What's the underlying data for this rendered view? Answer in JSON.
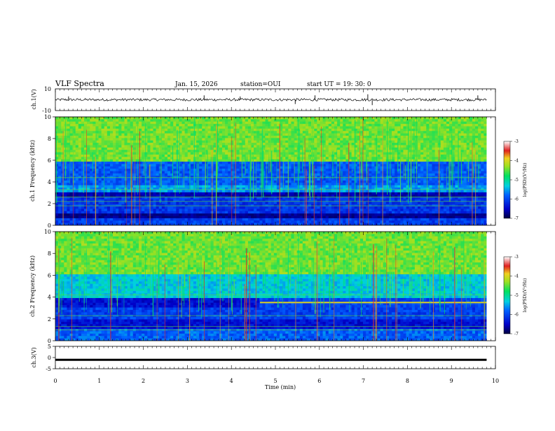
{
  "header": {
    "title": "VLF Spectra",
    "date": "Jan. 15, 2026",
    "station": "station=OUI",
    "start": "start  UT =   19: 30: 0"
  },
  "chart_data": [
    {
      "type": "line",
      "name": "ch1-waveform",
      "ylabel": "ch.1(V)",
      "ylim": [
        -10,
        10
      ],
      "yticks": [
        10,
        -10
      ],
      "baseline": 0,
      "noise_amplitude": 1.2,
      "spikes": [
        {
          "t": 0.3,
          "v": 3
        },
        {
          "t": 3.38,
          "v": 4
        },
        {
          "t": 4.2,
          "v": 3
        },
        {
          "t": 5.45,
          "v": -4
        },
        {
          "t": 5.9,
          "v": 4
        },
        {
          "t": 7.1,
          "v": 5
        },
        {
          "t": 7.2,
          "v": -5
        },
        {
          "t": 9.6,
          "v": 4
        }
      ]
    },
    {
      "type": "heatmap",
      "name": "ch1-spectrogram",
      "ylabel": "ch.1  Frequency (kHz)",
      "ylim": [
        0,
        10
      ],
      "yticks": [
        0,
        2,
        4,
        6,
        8,
        10
      ],
      "xlim": [
        0,
        10
      ],
      "data_end": 9.8,
      "colorbar": {
        "label": "log(PSD)(V²/Hz)",
        "range": [
          -7,
          -3
        ],
        "ticks": [
          -3,
          -4,
          -5,
          -6,
          -7
        ]
      },
      "band_boundaries_khz": [
        5.8,
        3.8,
        3.0,
        2.5,
        1.0,
        0.7
      ],
      "lines_khz": [
        1.8,
        2.2,
        2.6,
        3.3,
        4.4
      ]
    },
    {
      "type": "heatmap",
      "name": "ch2-spectrogram",
      "ylabel": "ch.2  Frequency (kHz)",
      "ylim": [
        0,
        10
      ],
      "yticks": [
        0,
        2,
        4,
        6,
        8,
        10
      ],
      "xlim": [
        0,
        10
      ],
      "data_end": 9.8,
      "colorbar": {
        "label": "log(PSD)(V²/Hz)",
        "range": [
          -7,
          -3
        ],
        "ticks": [
          -3,
          -4,
          -5,
          -6,
          -7
        ]
      },
      "band_boundaries_khz": [
        6.0,
        4.0,
        3.0,
        2.0,
        1.0
      ],
      "step_line": {
        "t_start": 4.65,
        "khz": 3.5
      },
      "lines_khz": [
        1.0,
        1.3,
        2.3,
        4.2
      ]
    },
    {
      "type": "line",
      "name": "ch3-waveform",
      "ylabel": "ch.3(V)",
      "ylim": [
        -5,
        5
      ],
      "yticks": [
        5,
        0,
        -5
      ],
      "baseline": -1,
      "xlabel": "Time  (min)",
      "xlim": [
        0,
        10
      ],
      "xticks": [
        0,
        1,
        2,
        3,
        4,
        5,
        6,
        7,
        8,
        9,
        10
      ]
    }
  ]
}
